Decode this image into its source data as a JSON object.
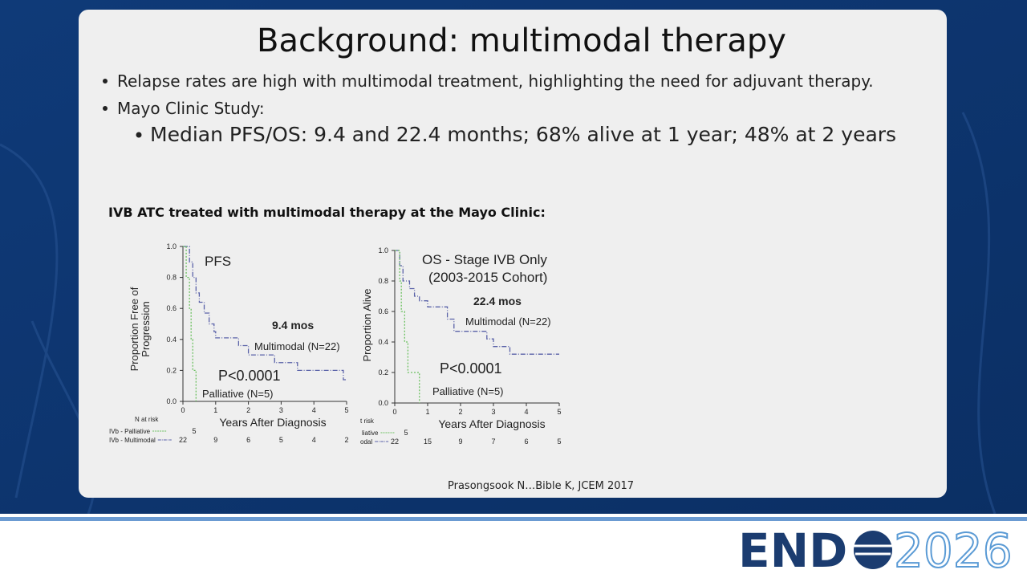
{
  "header": {
    "title": "Background: multimodal therapy"
  },
  "bullets": [
    "Relapse rates are high with multimodal treatment, highlighting the need for adjuvant therapy.",
    "Mayo Clinic Study:"
  ],
  "sub_bullets": [
    "Median PFS/OS: 9.4 and 22.4 months; 68% alive at 1 year; 48% at 2 years"
  ],
  "figure": {
    "caption": "IVB ATC treated with multimodal therapy at the Mayo Clinic:",
    "charts": [
      {
        "type": "step",
        "title": "PFS",
        "ylabel": [
          "Proportion Free of",
          "Progression"
        ],
        "xlabel": "Years After Diagnosis",
        "xlim": [
          0,
          5
        ],
        "ylim": [
          0,
          1.0
        ],
        "xticks": [
          0,
          1,
          2,
          3,
          4,
          5
        ],
        "yticks": [
          {
            "value": 0,
            "label": "0.0"
          },
          {
            "value": 0.2,
            "label": "0.2"
          },
          {
            "value": 0.4,
            "label": "0.4"
          },
          {
            "value": 0.6,
            "label": "0.6"
          },
          {
            "value": 0.8,
            "label": "0.8"
          },
          {
            "value": 1.0,
            "label": "1.0"
          }
        ],
        "annotations": [
          "9.4 mos",
          "Multimodal (N=22)",
          "P<0.0001",
          "Palliative (N=5)"
        ],
        "series": [
          {
            "color": "#5a62a8",
            "x": [
              0,
              0.2,
              0.2,
              0.3,
              0.3,
              0.4,
              0.4,
              0.5,
              0.5,
              0.65,
              0.65,
              0.8,
              0.8,
              0.95,
              0.95,
              1.0,
              1.0,
              1.7,
              1.7,
              2.0,
              2.0,
              2.8,
              2.8,
              3.5,
              3.5,
              4.9,
              4.9,
              5.0
            ],
            "values": [
              1.0,
              1.0,
              0.9,
              0.9,
              0.8,
              0.8,
              0.7,
              0.7,
              0.64,
              0.64,
              0.57,
              0.57,
              0.5,
              0.5,
              0.45,
              0.45,
              0.41,
              0.41,
              0.36,
              0.36,
              0.3,
              0.3,
              0.25,
              0.25,
              0.2,
              0.2,
              0.14,
              0.14
            ]
          },
          {
            "color": "#6cc060",
            "x": [
              0,
              0.1,
              0.1,
              0.2,
              0.2,
              0.25,
              0.25,
              0.3,
              0.3,
              0.4,
              0.4
            ],
            "values": [
              1.0,
              1.0,
              0.8,
              0.8,
              0.6,
              0.6,
              0.4,
              0.4,
              0.2,
              0.2,
              0
            ]
          }
        ],
        "risk_table": {
          "header": "N at risk",
          "rows": [
            {
              "label": "IVb - Palliative",
              "values": [
                5
              ]
            },
            {
              "label": "IVb - Multimodal",
              "values": [
                22,
                9,
                6,
                5,
                4,
                2
              ]
            }
          ]
        }
      },
      {
        "type": "step",
        "title": "OS  -  Stage IVB Only",
        "subtitle": "(2003-2015 Cohort)",
        "ylabel": [
          "Proportion Alive"
        ],
        "xlabel": "Years After Diagnosis",
        "xlim": [
          0,
          5
        ],
        "ylim": [
          0,
          1.0
        ],
        "xticks": [
          0,
          1,
          2,
          3,
          4,
          5
        ],
        "yticks": [
          {
            "value": 0,
            "label": "0.0"
          },
          {
            "value": 0.2,
            "label": "0.2"
          },
          {
            "value": 0.4,
            "label": "0.4"
          },
          {
            "value": 0.6,
            "label": "0.6"
          },
          {
            "value": 0.8,
            "label": "0.8"
          },
          {
            "value": 1.0,
            "label": "1.0"
          }
        ],
        "annotations": [
          "22.4 mos",
          "Multimodal (N=22)",
          "P<0.0001",
          "Palliative (N=5)"
        ],
        "series": [
          {
            "color": "#5a62a8",
            "x": [
              0,
              0.15,
              0.15,
              0.25,
              0.25,
              0.45,
              0.45,
              0.6,
              0.6,
              0.75,
              0.75,
              1.0,
              1.0,
              1.6,
              1.6,
              1.8,
              1.8,
              2.8,
              2.8,
              3.0,
              3.0,
              3.5,
              3.5,
              5.0
            ],
            "values": [
              1.0,
              1.0,
              0.9,
              0.9,
              0.8,
              0.8,
              0.75,
              0.75,
              0.7,
              0.7,
              0.67,
              0.67,
              0.63,
              0.63,
              0.55,
              0.55,
              0.47,
              0.47,
              0.42,
              0.42,
              0.37,
              0.37,
              0.32,
              0.32
            ]
          },
          {
            "color": "#6cc060",
            "x": [
              0,
              0.15,
              0.15,
              0.2,
              0.2,
              0.3,
              0.3,
              0.4,
              0.4,
              0.75,
              0.75
            ],
            "values": [
              1.0,
              1.0,
              0.8,
              0.8,
              0.6,
              0.6,
              0.4,
              0.4,
              0.2,
              0.2,
              0
            ]
          }
        ],
        "risk_table": {
          "header": "t risk",
          "rows": [
            {
              "label": "liative",
              "values": [
                5
              ]
            },
            {
              "label": "odal",
              "values": [
                22,
                15,
                9,
                7,
                6,
                5
              ]
            }
          ]
        }
      }
    ]
  },
  "citation": "Prasongsook N…Bible K, JCEM 2017",
  "footer": {
    "logo_left": "END",
    "logo_right": "2026"
  }
}
